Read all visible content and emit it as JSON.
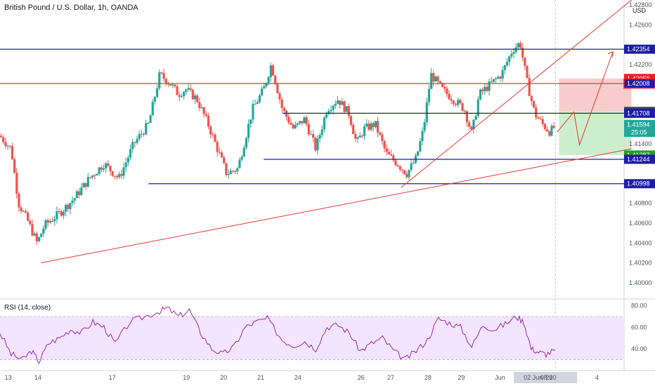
{
  "chart_title": "British Pound / U.S. Dollar, 1h, OANDA",
  "currency": "USD",
  "rsi_title": "RSI (14, close)",
  "colors": {
    "up": "#26a69a",
    "down": "#ef5350",
    "blue_line": "#1e1ea0",
    "red_line": "#e53935",
    "rsi_line": "#9c27b0",
    "rsi_band": "#f3e5fd",
    "stop_zone": "#f8c8c8",
    "target_zone": "#c8ecc8"
  },
  "chart_data": [
    {
      "type": "candlestick",
      "title": "British Pound / U.S. Dollar, 1h, OANDA",
      "x_tick_labels": [
        "13",
        "14",
        "17",
        "19",
        "20",
        "21",
        "24",
        "26",
        "27",
        "28",
        "29",
        "Jun",
        "02 Jun '21",
        "08:00",
        "4"
      ],
      "x_tick_positions": [
        0.2,
        1.0,
        3.0,
        5.0,
        6.0,
        7.0,
        8.0,
        9.7,
        10.5,
        11.5,
        12.4,
        13.4,
        14.4,
        14.85,
        16.1
      ],
      "x_range": [
        0,
        16.8
      ],
      "y_ticks": [
        1.4,
        1.402,
        1.404,
        1.406,
        1.408,
        1.414,
        1.422,
        1.426,
        1.428
      ],
      "y_range": [
        1.3985,
        1.4285
      ],
      "price_series": [
        [
          0.0,
          1.4148
        ],
        [
          0.3,
          1.4135
        ],
        [
          0.5,
          1.408
        ],
        [
          0.75,
          1.4062
        ],
        [
          1.0,
          1.404
        ],
        [
          1.2,
          1.4058
        ],
        [
          1.6,
          1.407
        ],
        [
          2.0,
          1.4085
        ],
        [
          2.4,
          1.4105
        ],
        [
          2.8,
          1.412
        ],
        [
          3.2,
          1.4105
        ],
        [
          3.6,
          1.414
        ],
        [
          4.0,
          1.416
        ],
        [
          4.3,
          1.421
        ],
        [
          4.6,
          1.42
        ],
        [
          4.8,
          1.419
        ],
        [
          5.0,
          1.4195
        ],
        [
          5.3,
          1.4185
        ],
        [
          5.6,
          1.416
        ],
        [
          5.9,
          1.413
        ],
        [
          6.1,
          1.411
        ],
        [
          6.4,
          1.4115
        ],
        [
          6.8,
          1.4175
        ],
        [
          7.1,
          1.4195
        ],
        [
          7.3,
          1.422
        ],
        [
          7.6,
          1.4175
        ],
        [
          7.9,
          1.4155
        ],
        [
          8.2,
          1.4165
        ],
        [
          8.5,
          1.4135
        ],
        [
          8.8,
          1.4175
        ],
        [
          9.1,
          1.4185
        ],
        [
          9.4,
          1.417
        ],
        [
          9.6,
          1.414
        ],
        [
          9.8,
          1.4155
        ],
        [
          10.1,
          1.416
        ],
        [
          10.4,
          1.413
        ],
        [
          10.7,
          1.412
        ],
        [
          10.95,
          1.411
        ],
        [
          11.2,
          1.4125
        ],
        [
          11.4,
          1.4155
        ],
        [
          11.6,
          1.421
        ],
        [
          11.9,
          1.4195
        ],
        [
          12.2,
          1.4185
        ],
        [
          12.5,
          1.4175
        ],
        [
          12.7,
          1.415
        ],
        [
          12.9,
          1.419
        ],
        [
          13.2,
          1.42
        ],
        [
          13.5,
          1.421
        ],
        [
          13.8,
          1.4235
        ],
        [
          14.0,
          1.4242
        ],
        [
          14.2,
          1.42
        ],
        [
          14.4,
          1.417
        ],
        [
          14.6,
          1.416
        ],
        [
          14.8,
          1.4152
        ],
        [
          14.95,
          1.4158
        ]
      ],
      "horizontal_levels": [
        {
          "price": 1.42354,
          "x_start": 0.0,
          "color": "blue"
        },
        {
          "price": 1.42008,
          "x_start": 0.0,
          "color": "red"
        },
        {
          "price": 1.41708,
          "x_start": 7.6,
          "color": "blue"
        },
        {
          "price": 1.41244,
          "x_start": 7.1,
          "color": "blue"
        },
        {
          "price": 1.40998,
          "x_start": 4.0,
          "color": "blue"
        }
      ],
      "trendlines": [
        {
          "from": [
            1.1,
            1.402
          ],
          "to": [
            17.0,
            1.4135
          ]
        },
        {
          "from": [
            10.8,
            1.4096
          ],
          "to": [
            17.0,
            1.4285
          ]
        }
      ],
      "forecast_path": [
        [
          15.0,
          1.4152
        ],
        [
          15.45,
          1.4172
        ],
        [
          15.6,
          1.4139
        ],
        [
          16.5,
          1.4233
        ]
      ],
      "stop_zone": {
        "x": [
          15.05,
          17.0
        ],
        "y": [
          1.41727,
          1.42059
        ]
      },
      "target_zone": {
        "x": [
          15.05,
          17.0
        ],
        "y": [
          1.41287,
          1.41727
        ]
      },
      "price_labels": [
        {
          "text": "1.42354",
          "price": 1.42354,
          "style": "blue"
        },
        {
          "text": "1.42059",
          "price": 1.42059,
          "style": "red"
        },
        {
          "text": "1.42008",
          "price": 1.42008,
          "style": "blue-red"
        },
        {
          "text": "1.41727",
          "price": 1.41727,
          "style": "gray"
        },
        {
          "text": "1.41708",
          "price": 1.41708,
          "style": "blue"
        },
        {
          "text": "1.41594",
          "price": 1.41594,
          "style": "teal",
          "sub": "25:05"
        },
        {
          "text": "1.41287",
          "price": 1.41287,
          "style": "green"
        },
        {
          "text": "1.41244",
          "price": 1.41244,
          "style": "blue"
        },
        {
          "text": "1.40998",
          "price": 1.40998,
          "style": "blue"
        }
      ]
    },
    {
      "type": "line",
      "title": "RSI (14, close)",
      "y_ticks": [
        40.0,
        60.0,
        80.0
      ],
      "y_range": [
        25,
        85
      ],
      "band": [
        30,
        70
      ],
      "series": [
        {
          "values": [
            [
              0.0,
              55
            ],
            [
              0.3,
              35
            ],
            [
              0.6,
              30
            ],
            [
              0.85,
              38
            ],
            [
              1.05,
              28
            ],
            [
              1.3,
              45
            ],
            [
              1.6,
              50
            ],
            [
              1.9,
              58
            ],
            [
              2.2,
              55
            ],
            [
              2.5,
              65
            ],
            [
              2.8,
              60
            ],
            [
              3.1,
              45
            ],
            [
              3.5,
              65
            ],
            [
              3.9,
              70
            ],
            [
              4.3,
              75
            ],
            [
              4.5,
              78
            ],
            [
              4.8,
              70
            ],
            [
              5.1,
              76
            ],
            [
              5.4,
              55
            ],
            [
              5.7,
              40
            ],
            [
              6.0,
              35
            ],
            [
              6.3,
              42
            ],
            [
              6.6,
              60
            ],
            [
              6.9,
              65
            ],
            [
              7.2,
              68
            ],
            [
              7.6,
              48
            ],
            [
              7.9,
              43
            ],
            [
              8.2,
              47
            ],
            [
              8.5,
              40
            ],
            [
              8.8,
              60
            ],
            [
              9.1,
              62
            ],
            [
              9.4,
              55
            ],
            [
              9.7,
              38
            ],
            [
              10.0,
              45
            ],
            [
              10.3,
              50
            ],
            [
              10.6,
              38
            ],
            [
              10.9,
              30
            ],
            [
              11.2,
              38
            ],
            [
              11.5,
              48
            ],
            [
              11.8,
              68
            ],
            [
              12.1,
              64
            ],
            [
              12.4,
              60
            ],
            [
              12.7,
              42
            ],
            [
              13.0,
              62
            ],
            [
              13.3,
              58
            ],
            [
              13.6,
              63
            ],
            [
              13.9,
              70
            ],
            [
              14.1,
              65
            ],
            [
              14.3,
              40
            ],
            [
              14.5,
              37
            ],
            [
              14.7,
              35
            ],
            [
              14.95,
              39
            ]
          ]
        }
      ]
    }
  ]
}
